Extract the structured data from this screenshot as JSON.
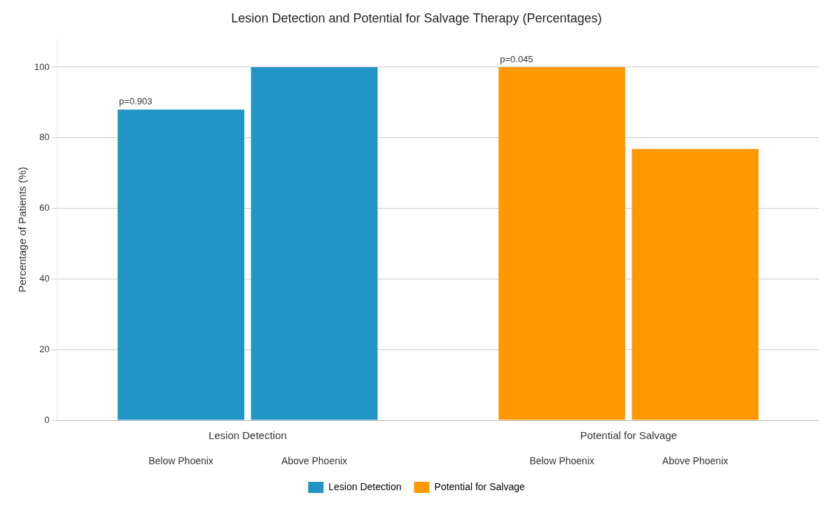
{
  "chart_data": {
    "type": "bar",
    "title": "Lesion Detection and Potential for Salvage Therapy (Percentages)",
    "ylabel": "Percentage of Patients (%)",
    "categories": [
      "Below Phoenix",
      "Above Phoenix"
    ],
    "series": [
      {
        "name": "Lesion Detection",
        "color": "#2196C4",
        "values": [
          88,
          100
        ],
        "annotation": "p=0.903"
      },
      {
        "name": "Potential for Salvage",
        "color": "#FF9900",
        "values": [
          100,
          76.8
        ],
        "annotation": "p=0.045"
      }
    ],
    "ylim": [
      0,
      108
    ],
    "yticks": [
      0,
      20,
      40,
      60,
      80,
      100
    ],
    "grid": true,
    "legend": "bottom"
  }
}
